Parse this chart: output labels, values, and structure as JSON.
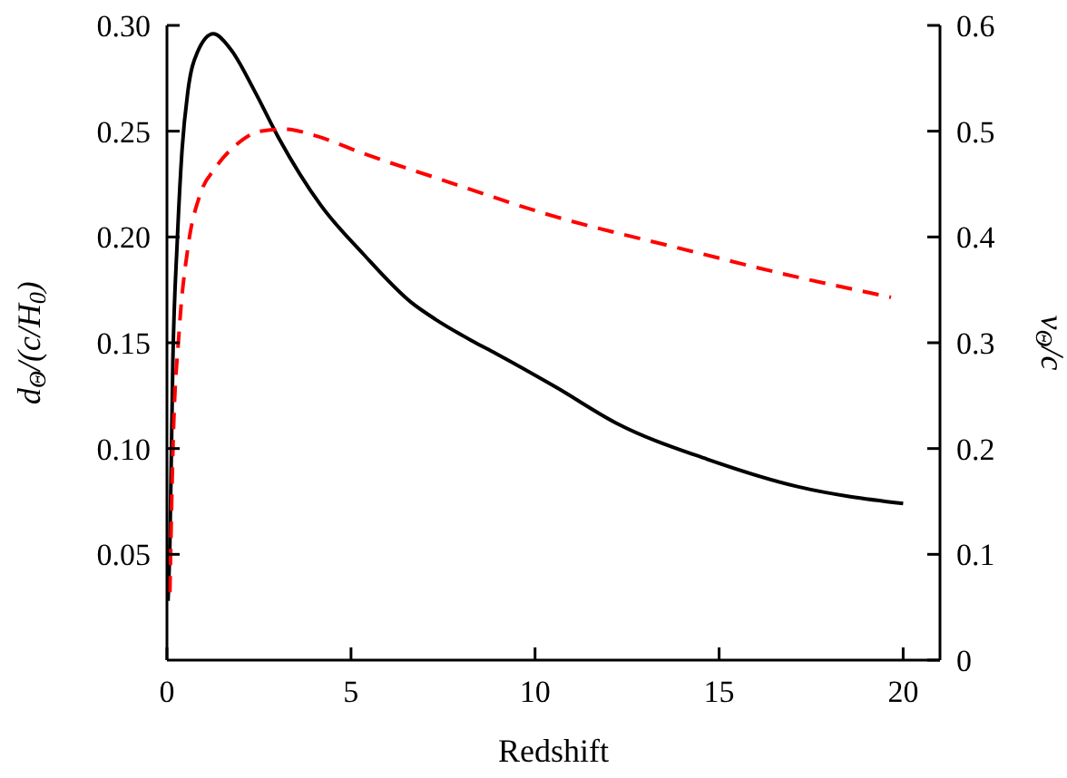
{
  "chart_data": {
    "type": "line",
    "xlabel": "Redshift",
    "ylabel": "d$_{Θ}$/(c/H$_{0}$)",
    "y2label": "v$_{Θ}$/c",
    "xlim": [
      0,
      21
    ],
    "xticks": [
      0,
      5,
      10,
      15,
      20
    ],
    "ylim": [
      0,
      0.3
    ],
    "yticks": [
      0.05,
      {
        "value": 0.1,
        "label": "0.10"
      },
      0.15,
      {
        "value": 0.2,
        "label": "0.20"
      },
      0.25,
      {
        "value": 0.3,
        "label": "0.30"
      }
    ],
    "y2lim": [
      0,
      0.6
    ],
    "y2ticks": [
      0,
      0.1,
      0.2,
      0.3,
      0.4,
      0.5,
      0.6
    ],
    "marker": "none",
    "series": [
      {
        "color": "#000000",
        "line_style": "solid",
        "x": [
          0.03,
          0.08,
          0.16,
          0.28,
          0.41,
          0.57,
          0.82,
          1.26,
          1.72,
          2.38,
          3.03,
          4.18,
          5.33,
          6.64,
          7.3,
          8.28,
          8.93,
          10.57,
          12.21,
          14.67,
          17.13,
          20.0
        ],
        "values": [
          0.028,
          0.055,
          0.141,
          0.198,
          0.241,
          0.269,
          0.287,
          0.296,
          0.289,
          0.269,
          0.247,
          0.215,
          0.192,
          0.169,
          0.161,
          0.151,
          0.145,
          0.129,
          0.112,
          0.095,
          0.082,
          0.074
        ]
      },
      {
        "color": "#ff0000",
        "line_style": "dashed",
        "axis": "y2",
        "x": [
          0.08,
          0.16,
          0.33,
          0.57,
          0.9,
          1.31,
          1.88,
          2.54,
          3.2,
          4.01,
          5.33,
          7.3,
          10.57,
          13.85,
          17.13,
          19.67
        ],
        "values": [
          0.064,
          0.196,
          0.31,
          0.39,
          0.44,
          0.465,
          0.487,
          0.5,
          0.502,
          0.496,
          0.479,
          0.456,
          0.419,
          0.39,
          0.362,
          0.343
        ]
      }
    ]
  }
}
